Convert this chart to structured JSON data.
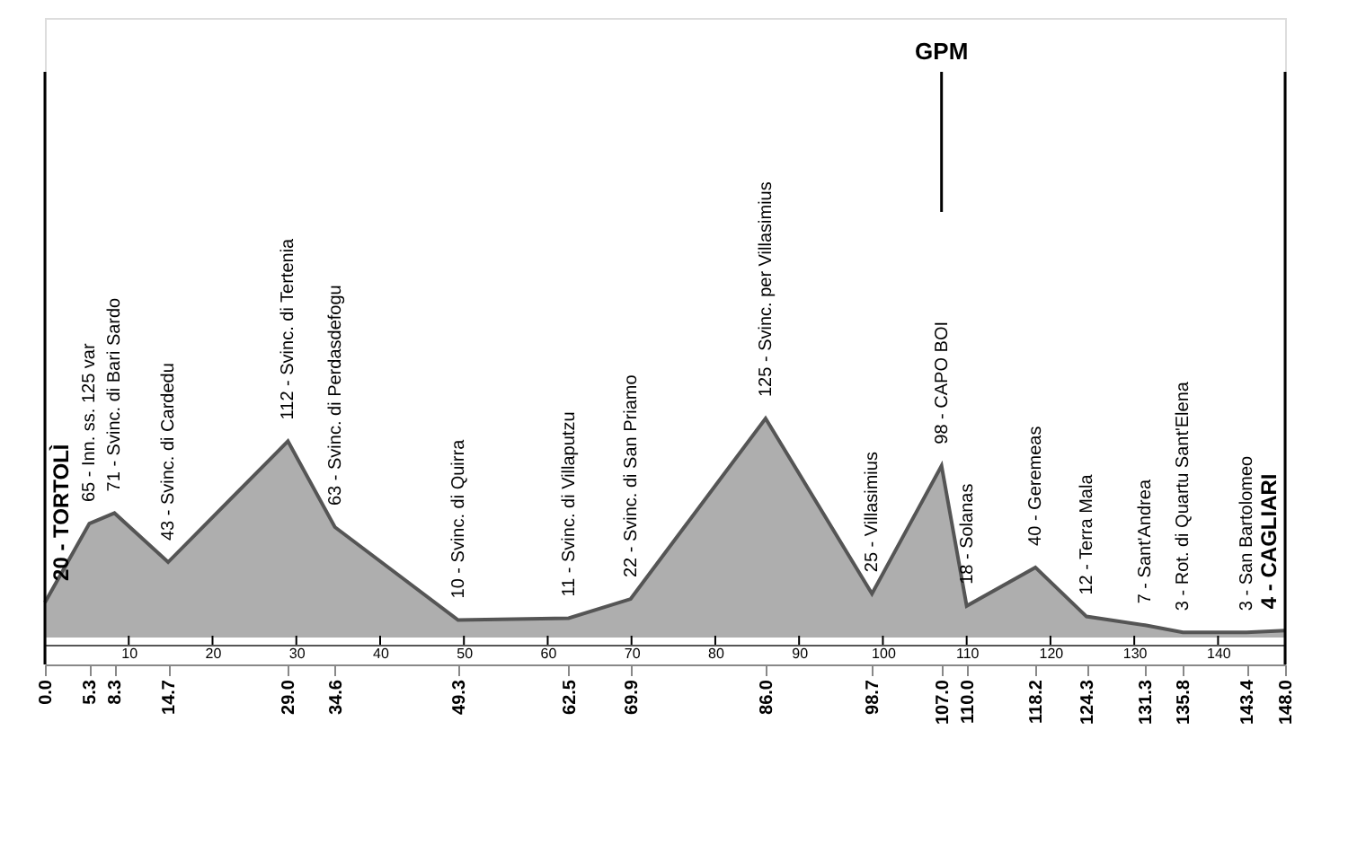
{
  "chart_data": {
    "type": "area",
    "x": [
      0.0,
      5.3,
      8.3,
      14.7,
      29.0,
      34.6,
      49.3,
      62.5,
      69.9,
      86.0,
      98.7,
      107.0,
      110.0,
      118.2,
      124.3,
      131.3,
      135.8,
      143.4,
      148.0
    ],
    "series": [
      {
        "color": "#8c8c8c",
        "values": [
          20,
          65,
          71,
          43,
          112,
          63,
          10,
          11,
          22,
          125,
          25,
          98,
          18,
          40,
          12,
          7,
          3,
          3,
          4
        ],
        "value_labels": [
          "20 - TORTOLÌ",
          "65 - Inn. ss. 125 var",
          "71 - Svinc. di Bari Sardo",
          "43 - Svinc. di Cardedu",
          "112 - Svinc. di Tertenia",
          "63 - Svinc. di Perdasdefogu",
          "10 - Svinc. di Quirra",
          "11 - Svinc. di Villaputzu",
          "22 - Svinc. di San Priamo",
          "125 - Svinc. per Villasimius",
          "25 - Villasimius",
          "98 - CAPO BOI",
          "18 - Solanas",
          "40 - Geremeas",
          "12 - Terra Mala",
          "7 - Sant'Andrea",
          "3 - Rot. di Quartu Sant'Elena",
          "3 - San Bartolomeo",
          "4 - CAGLIARI"
        ]
      }
    ],
    "xlim": [
      0,
      148
    ],
    "tick_labels": "x",
    "grid": false,
    "xticks": [
      {
        "value": 0,
        "label": "0.0"
      },
      5.3,
      8.3,
      14.7,
      {
        "value": 29,
        "label": "29.0"
      },
      34.6,
      49.3,
      62.5,
      69.9,
      {
        "value": 86,
        "label": "86.0"
      },
      98.7,
      {
        "value": 107,
        "label": "107.0"
      },
      {
        "value": 110,
        "label": "110.0"
      },
      118.2,
      124.3,
      131.3,
      135.8,
      143.4,
      {
        "value": 148,
        "label": "148.0"
      }
    ],
    "x2lim": [
      0,
      148
    ],
    "x2ticks": [
      10,
      20,
      30,
      40,
      50,
      60,
      70,
      80,
      90,
      100,
      110,
      120,
      130,
      140
    ],
    "ref_lines": [
      {
        "axis": "x",
        "value": 0
      },
      {
        "axis": "x",
        "value": 107,
        "label": "GPM"
      },
      {
        "axis": "x",
        "value": 148
      }
    ]
  }
}
